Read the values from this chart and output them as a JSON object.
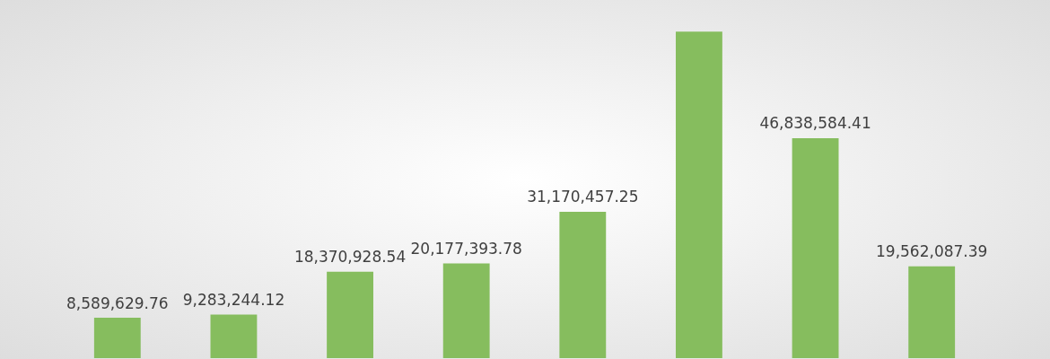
{
  "chart_data": {
    "type": "bar",
    "categories": [
      null,
      null,
      null,
      null,
      null,
      null,
      null,
      null
    ],
    "values": [
      8589629.76,
      9283244.12,
      18370928.54,
      20177393.78,
      31170457.25,
      69500000,
      46838584.41,
      19562087.39
    ],
    "value_labels": [
      "8,589,629.76",
      "9,283,244.12",
      "18,370,928.54",
      "20,177,393.78",
      "31,170,457.25",
      null,
      "46,838,584.41",
      "19,562,087.39"
    ],
    "color": "#86bd5e",
    "grid": false,
    "tick_labels": false
  }
}
